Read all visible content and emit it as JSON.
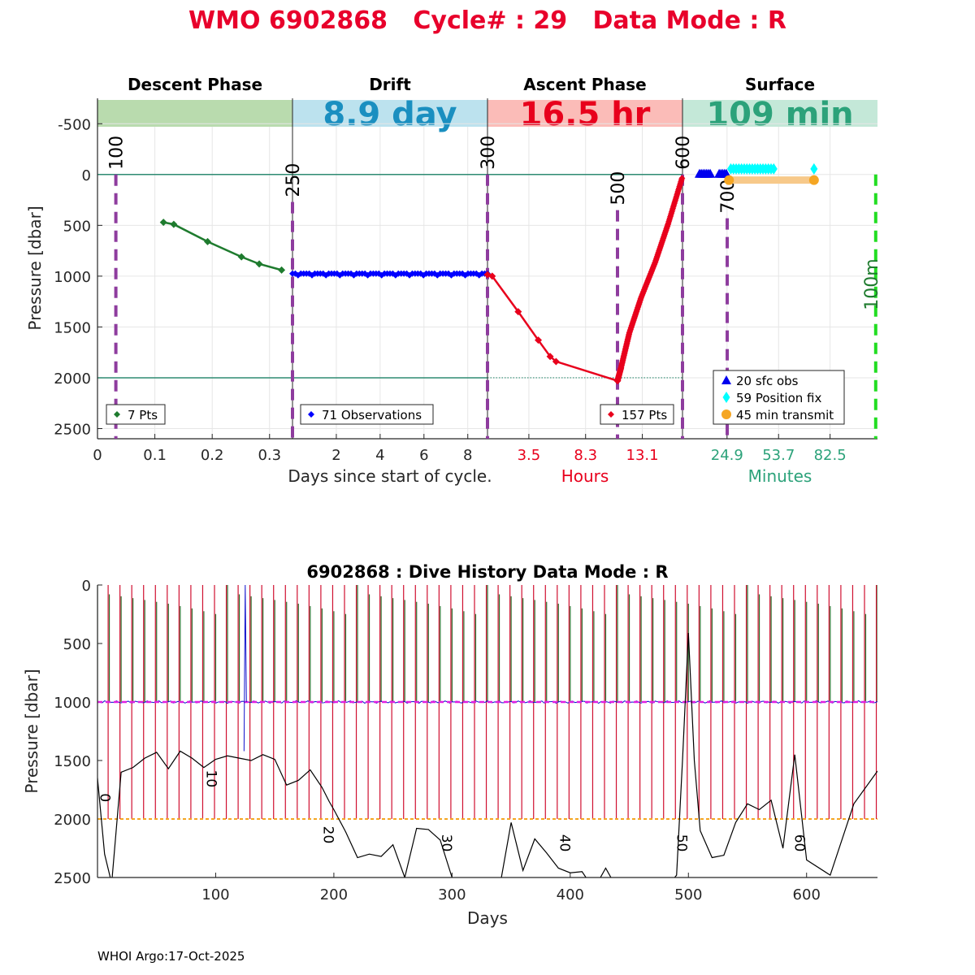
{
  "title": "WMO 6902868   Cycle# : 29   Data Mode : R",
  "footer": "WHOI Argo:17-Oct-2025",
  "colors": {
    "title": "#e8002b",
    "descent": "#1e7b2e",
    "drift": "#0000ff",
    "ascent": "#e8001c",
    "surface_teal": "#2ca27a",
    "drift_header": "#1a8fc0",
    "marker": "#8e3c9e",
    "ref_line": "#2e8b72",
    "green_dash": "#22dd22",
    "orange": "#f5a623",
    "cyan": "#00ffff",
    "magenta": "#e020e0"
  },
  "chart_data": [
    {
      "type": "line",
      "title": "Cycle profile",
      "ylabel": "Pressure [dbar]",
      "ylim": [
        -750,
        2600
      ],
      "yticks": [
        "-500",
        "0",
        "500",
        "1000",
        "1500",
        "2000",
        "2500"
      ],
      "ytick_values": [
        -500,
        0,
        500,
        1000,
        1500,
        2000,
        2500
      ],
      "reference_lines": [
        0,
        2000
      ],
      "phases": [
        {
          "name": "Descent Phase",
          "header_value": "",
          "xticks": [
            "0",
            "0.1",
            "0.2",
            "0.3"
          ],
          "xtick_values": [
            0,
            0.1,
            0.2,
            0.3
          ],
          "xlim": [
            0,
            0.34
          ],
          "legend": "7 Pts",
          "x": [
            0.115,
            0.133,
            0.192,
            0.251,
            0.282,
            0.321
          ],
          "y": [
            470,
            490,
            660,
            810,
            880,
            940
          ],
          "markers": [
            {
              "label": "100",
              "x": 0.032,
              "y_top": 0
            }
          ]
        },
        {
          "name": "Drift",
          "header_value": "8.9 day",
          "xticks": [
            "2",
            "4",
            "6",
            "8"
          ],
          "xtick_values": [
            2,
            4,
            6,
            8
          ],
          "xlim": [
            0,
            8.9
          ],
          "legend": "71 Observations",
          "points": 71,
          "level": 975,
          "markers": [
            {
              "label": "250",
              "x": 0,
              "y_top": 270
            }
          ]
        },
        {
          "name": "Ascent Phase",
          "header_value": "16.5 hr",
          "xlabel": "Hours",
          "xticks": [
            "3.5",
            "8.3",
            "13.1"
          ],
          "xtick_values": [
            3.5,
            8.3,
            13.1
          ],
          "xlim": [
            0,
            16.5
          ],
          "legend": "157 Pts",
          "x": [
            0,
            0.4,
            2.6,
            4.3,
            5.3,
            5.8,
            11.0,
            11.3,
            12.0,
            13.0,
            14.2,
            15.3,
            16.5
          ],
          "y": [
            985,
            1000,
            1350,
            1630,
            1790,
            1840,
            2030,
            1900,
            1560,
            1210,
            860,
            480,
            20
          ],
          "markers": [
            {
              "label": "300",
              "x": 0,
              "y_top": 0
            },
            {
              "label": "500",
              "x": 11.0,
              "y_top": 350
            },
            {
              "label": "600",
              "x": 16.5,
              "y_top": 0
            }
          ]
        },
        {
          "name": "Surface",
          "header_value": "109 min",
          "xlabel": "Minutes",
          "xticks": [
            "24.9",
            "53.7",
            "82.5"
          ],
          "xtick_values": [
            24.9,
            53.7,
            82.5
          ],
          "xlim": [
            0,
            109
          ],
          "markers": [
            {
              "label": "700",
              "x": 25,
              "y_top": 430
            },
            {
              "label": "100m",
              "x": 108,
              "y_top": 0
            }
          ],
          "sfc_obs_x": [
            9.5,
            10.5,
            11.5,
            12.5,
            13.5,
            14.5,
            15.5,
            20.5,
            21.5,
            22.5,
            23.5,
            24.5
          ],
          "position_fix_x": [
            27,
            28.5,
            30,
            31.5,
            33,
            34.5,
            36,
            37.5,
            39,
            40.5,
            42,
            43.5,
            45,
            46.5,
            48,
            49.5,
            51,
            73.5
          ],
          "transmit_x": [
            26,
            73.5
          ],
          "legend": [
            "20 sfc obs",
            "59 Position fix",
            "45 min transmit"
          ]
        }
      ],
      "xlabel": "Days since start of cycle."
    },
    {
      "type": "line",
      "title": "6902868 : Dive History      Data Mode : R",
      "xlabel": "Days",
      "ylabel": "Pressure [dbar]",
      "xlim": [
        0,
        660
      ],
      "ylim": [
        0,
        2500
      ],
      "xticks": [
        "100",
        "200",
        "300",
        "400",
        "500",
        "600"
      ],
      "xtick_values": [
        100,
        200,
        300,
        400,
        500,
        600
      ],
      "yticks": [
        "0",
        "500",
        "1000",
        "1500",
        "2000",
        "2500"
      ],
      "ytick_values": [
        0,
        500,
        1000,
        1500,
        2000,
        2500
      ],
      "cycle_interval_days": 10,
      "cycle_count": 67,
      "cycle_labels": [
        {
          "label": "0",
          "x": 1,
          "y": 1780
        },
        {
          "label": "10",
          "x": 91,
          "y": 1580
        },
        {
          "label": "20",
          "x": 190,
          "y": 2060
        },
        {
          "label": "30",
          "x": 290,
          "y": 2130
        },
        {
          "label": "40",
          "x": 390,
          "y": 2130
        },
        {
          "label": "50",
          "x": 489,
          "y": 2130
        },
        {
          "label": "60",
          "x": 589,
          "y": 2130
        }
      ],
      "parking_depth": 1000,
      "profile_depth": 2000,
      "bottom_series": {
        "x": [
          0,
          6,
          12,
          20,
          30,
          40,
          50,
          60,
          70,
          80,
          90,
          100,
          110,
          120,
          130,
          140,
          150,
          160,
          170,
          180,
          190,
          196,
          200,
          210,
          220,
          230,
          240,
          250,
          260,
          270,
          280,
          290,
          300,
          320,
          340,
          350,
          360,
          370,
          380,
          390,
          400,
          410,
          420,
          430,
          440,
          460,
          480,
          490,
          495,
          500,
          505,
          510,
          520,
          530,
          540,
          550,
          560,
          570,
          580,
          590,
          600,
          620,
          640,
          660
        ],
        "y": [
          1650,
          2300,
          2550,
          1600,
          1560,
          1480,
          1430,
          1570,
          1420,
          1480,
          1560,
          1490,
          1460,
          1480,
          1500,
          1450,
          1490,
          1710,
          1670,
          1580,
          1730,
          1850,
          1920,
          2110,
          2330,
          2300,
          2320,
          2220,
          2500,
          2080,
          2090,
          2180,
          2500,
          2800,
          2600,
          2030,
          2440,
          2170,
          2290,
          2420,
          2460,
          2450,
          2600,
          2420,
          2600,
          2600,
          2600,
          2480,
          1500,
          410,
          1500,
          2100,
          2330,
          2310,
          2030,
          1870,
          1920,
          1840,
          2250,
          1450,
          2350,
          2480,
          1870,
          1590
        ]
      }
    }
  ]
}
